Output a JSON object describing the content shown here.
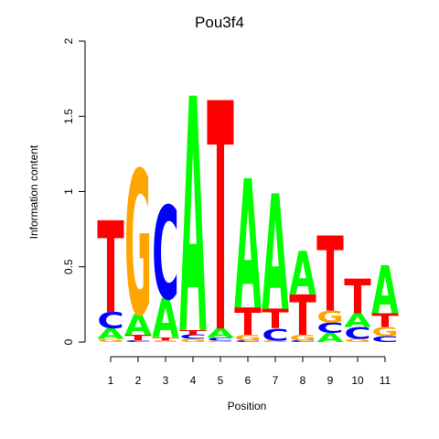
{
  "chart_data": {
    "type": "sequence-logo",
    "title": "Pou3f4",
    "xlabel": "Position",
    "ylabel": "Information content",
    "ylim": [
      0,
      2
    ],
    "yticks": [
      "0",
      "0.5",
      "1",
      "1.5",
      "2"
    ],
    "positions": [
      "1",
      "2",
      "3",
      "4",
      "5",
      "6",
      "7",
      "8",
      "9",
      "10",
      "11"
    ],
    "colors": {
      "A": "#00ff00",
      "C": "#0000ff",
      "G": "#ffa500",
      "T": "#ff0000"
    },
    "stacks": [
      [
        [
          "G",
          0.02
        ],
        [
          "A",
          0.07
        ],
        [
          "C",
          0.11
        ],
        [
          "T",
          0.61
        ]
      ],
      [
        [
          "C",
          0.01
        ],
        [
          "T",
          0.04
        ],
        [
          "A",
          0.14
        ],
        [
          "G",
          0.96
        ]
      ],
      [
        [
          "G",
          0.01
        ],
        [
          "T",
          0.02
        ],
        [
          "A",
          0.26
        ],
        [
          "C",
          0.62
        ]
      ],
      [
        [
          "G",
          0.02
        ],
        [
          "C",
          0.03
        ],
        [
          "T",
          0.03
        ],
        [
          "A",
          1.56
        ]
      ],
      [
        [
          "G",
          0.01
        ],
        [
          "C",
          0.02
        ],
        [
          "A",
          0.06
        ],
        [
          "T",
          1.52
        ]
      ],
      [
        [
          "C",
          0.01
        ],
        [
          "G",
          0.04
        ],
        [
          "T",
          0.18
        ],
        [
          "A",
          0.86
        ]
      ],
      [
        [
          "G",
          0.01
        ],
        [
          "C",
          0.08
        ],
        [
          "T",
          0.13
        ],
        [
          "A",
          0.77
        ]
      ],
      [
        [
          "C",
          0.01
        ],
        [
          "G",
          0.04
        ],
        [
          "T",
          0.27
        ],
        [
          "A",
          0.29
        ]
      ],
      [
        [
          "A",
          0.06
        ],
        [
          "C",
          0.07
        ],
        [
          "G",
          0.08
        ],
        [
          "T",
          0.5
        ]
      ],
      [
        [
          "G",
          0.02
        ],
        [
          "C",
          0.08
        ],
        [
          "A",
          0.09
        ],
        [
          "T",
          0.23
        ]
      ],
      [
        [
          "C",
          0.04
        ],
        [
          "G",
          0.06
        ],
        [
          "T",
          0.09
        ],
        [
          "A",
          0.32
        ]
      ]
    ]
  }
}
